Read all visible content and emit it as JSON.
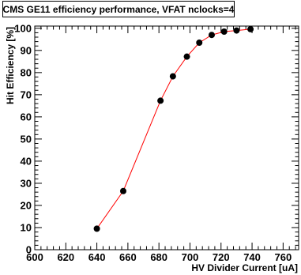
{
  "chart_data": {
    "type": "scatter",
    "title": "CMS GE11 efficiency performance, VFAT nclocks=4",
    "xlabel": "HV Divider Current [uA]",
    "ylabel": "Hit Efficiency [%]",
    "xlim": [
      600,
      770
    ],
    "ylim": [
      0,
      101
    ],
    "xticks": [
      600,
      620,
      640,
      660,
      680,
      700,
      720,
      740,
      760
    ],
    "yticks": [
      0,
      10,
      20,
      30,
      40,
      50,
      60,
      70,
      80,
      90,
      100
    ],
    "grid": false,
    "line_color": "#ff0000",
    "marker_color": "#000000",
    "series": [
      {
        "x": [
          640,
          657,
          681,
          689,
          698,
          706,
          714,
          722,
          730,
          739
        ],
        "y": [
          9.5,
          26.5,
          67.3,
          78.3,
          87.2,
          93.5,
          97.0,
          98.5,
          99.0,
          99.6
        ]
      }
    ]
  }
}
